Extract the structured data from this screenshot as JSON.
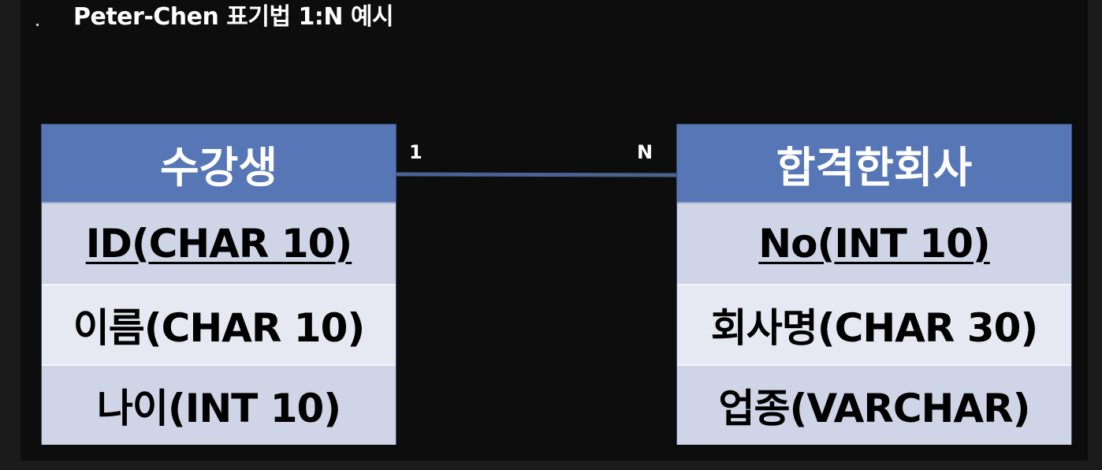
{
  "title": "Peter-Chen 표기법 1:N 예시",
  "entities": [
    {
      "name": "수강생",
      "attributes": [
        {
          "label": "ID(CHAR 10)",
          "primary_key": true
        },
        {
          "label": "이름(CHAR 10)",
          "primary_key": false
        },
        {
          "label": "나이(INT 10)",
          "primary_key": false
        }
      ]
    },
    {
      "name": "합격한회사",
      "attributes": [
        {
          "label": "No(INT 10)",
          "primary_key": true
        },
        {
          "label": "회사명(CHAR 30)",
          "primary_key": false
        },
        {
          "label": "업종(VARCHAR)",
          "primary_key": false
        }
      ]
    }
  ],
  "relationship": {
    "left_cardinality": "1",
    "right_cardinality": "N",
    "line_color": "#4a6290"
  },
  "colors": {
    "header": "#5676b5",
    "row_dark": "#cfd4e6",
    "row_light": "#e7e9f2",
    "background": "#0d0d0d"
  }
}
